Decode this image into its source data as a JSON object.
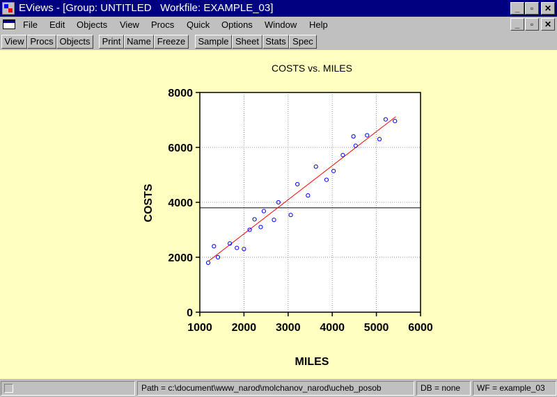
{
  "window": {
    "title": "EViews - [Group: UNTITLED   Workfile: EXAMPLE_03]",
    "controls": [
      "_",
      "▫",
      "✕"
    ]
  },
  "menu": {
    "items": [
      "File",
      "Edit",
      "Objects",
      "View",
      "Procs",
      "Quick",
      "Options",
      "Window",
      "Help"
    ],
    "controls": [
      "_",
      "▫",
      "✕"
    ]
  },
  "toolbar": {
    "buttons": [
      "View",
      "Procs",
      "Objects",
      "Print",
      "Name",
      "Freeze",
      "Sample",
      "Sheet",
      "Stats",
      "Spec"
    ]
  },
  "chart_data": {
    "type": "scatter",
    "title": "COSTS vs. MILES",
    "xlabel": "MILES",
    "ylabel": "COSTS",
    "xlim": [
      1000,
      6000
    ],
    "ylim": [
      0,
      8000
    ],
    "xticks": [
      1000,
      2000,
      3000,
      4000,
      5000,
      6000
    ],
    "yticks": [
      0,
      2000,
      4000,
      6000,
      8000
    ],
    "grid": true,
    "point_color": "#0000ff",
    "fit_line_color": "#ff0000",
    "mean_line_color": "#000000",
    "points": [
      [
        1190,
        1800
      ],
      [
        1320,
        2400
      ],
      [
        1410,
        2000
      ],
      [
        1680,
        2500
      ],
      [
        1840,
        2340
      ],
      [
        2000,
        2300
      ],
      [
        2130,
        3000
      ],
      [
        2240,
        3380
      ],
      [
        2380,
        3100
      ],
      [
        2450,
        3680
      ],
      [
        2680,
        3360
      ],
      [
        2780,
        4000
      ],
      [
        3060,
        3540
      ],
      [
        3210,
        4660
      ],
      [
        3450,
        4250
      ],
      [
        3630,
        5300
      ],
      [
        3870,
        4820
      ],
      [
        4030,
        5140
      ],
      [
        4240,
        5720
      ],
      [
        4480,
        6400
      ],
      [
        4530,
        6060
      ],
      [
        4790,
        6440
      ],
      [
        5070,
        6300
      ],
      [
        5210,
        7020
      ],
      [
        5420,
        6960
      ]
    ],
    "fit_line": [
      [
        1200,
        1860
      ],
      [
        5440,
        7120
      ]
    ],
    "mean_line": 3800
  },
  "status": {
    "path": "Path = c:\\document\\www_narod\\molchanov_narod\\ucheb_posob",
    "db": "DB = none",
    "wf": "WF = example_03"
  }
}
